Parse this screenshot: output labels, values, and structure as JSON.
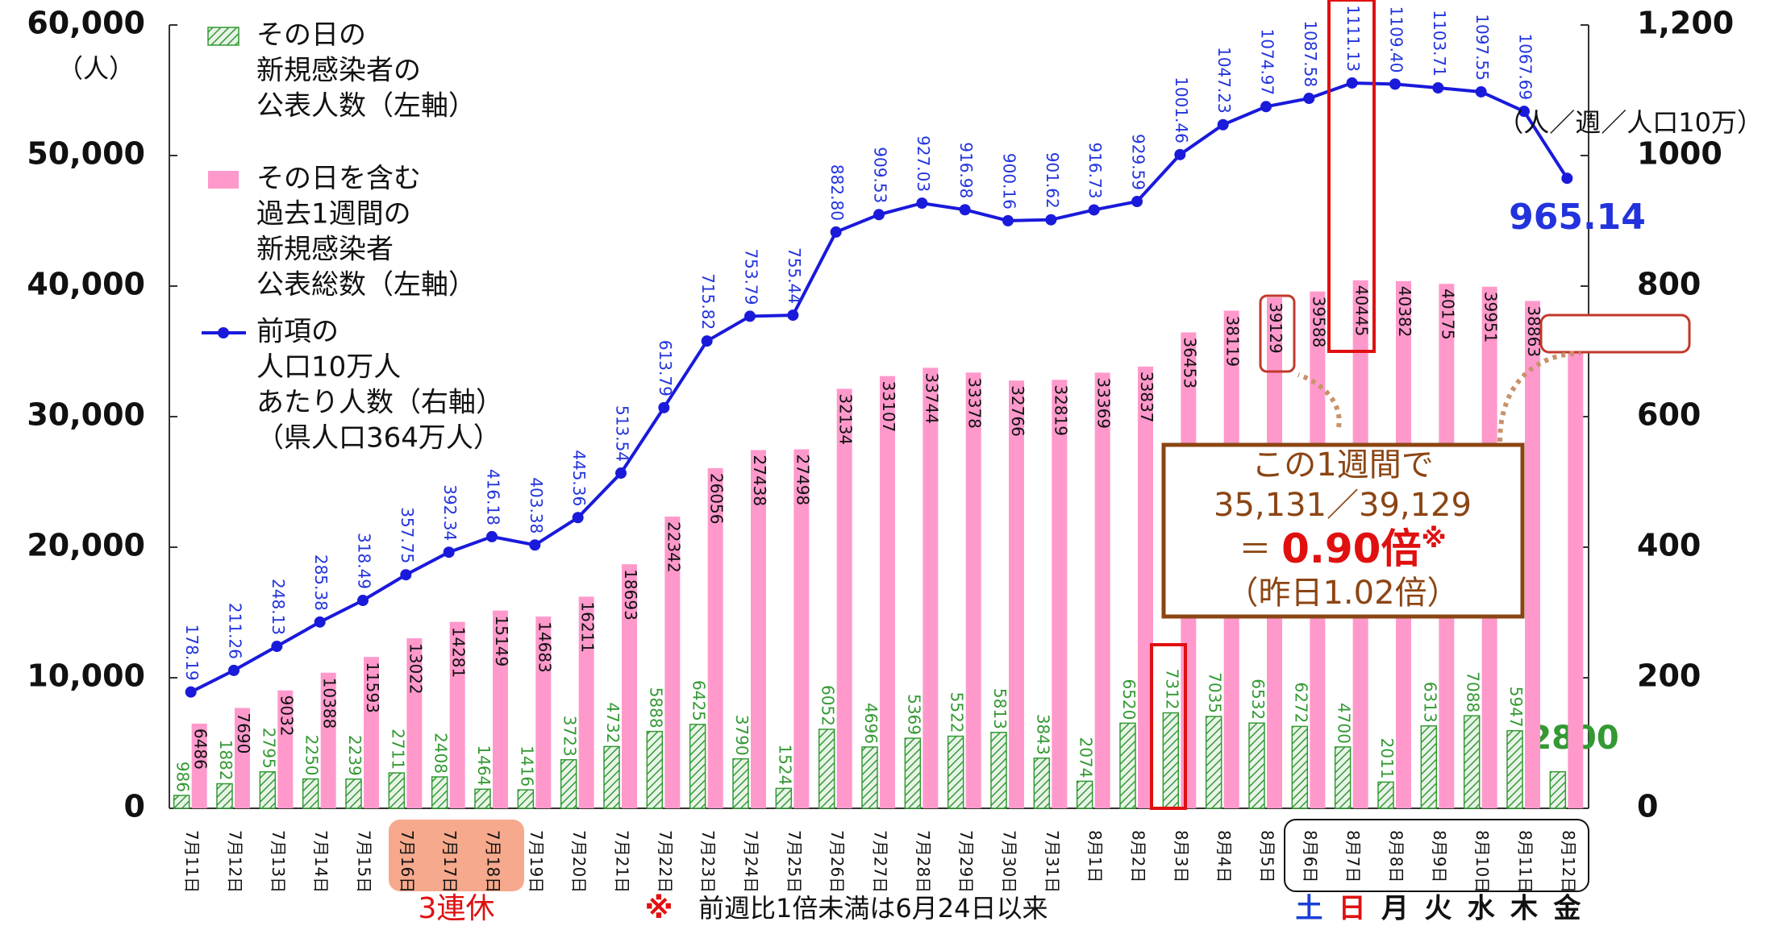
{
  "chart_data": {
    "type": "bar",
    "categories": [
      "7月11日",
      "7月12日",
      "7月13日",
      "7月14日",
      "7月15日",
      "7月16日",
      "7月17日",
      "7月18日",
      "7月19日",
      "7月20日",
      "7月21日",
      "7月22日",
      "7月23日",
      "7月24日",
      "7月25日",
      "7月26日",
      "7月27日",
      "7月28日",
      "7月29日",
      "7月30日",
      "7月31日",
      "8月1日",
      "8月2日",
      "8月3日",
      "8月4日",
      "8月5日",
      "8月6日",
      "8月7日",
      "8月8日",
      "8月9日",
      "8月10日",
      "8月11日",
      "8月12日"
    ],
    "series": [
      {
        "name": [
          "その日の",
          "新規感染者の",
          "公表人数（左軸）"
        ],
        "type": "bar",
        "color": "#339933",
        "values": [
          986,
          1882,
          2795,
          2250,
          2239,
          2711,
          2408,
          1464,
          1416,
          3723,
          4732,
          5888,
          6425,
          3790,
          1524,
          6052,
          4696,
          5369,
          5522,
          5813,
          3843,
          2074,
          6520,
          7312,
          7035,
          6532,
          6272,
          4700,
          2011,
          6313,
          7088,
          5947,
          2800
        ]
      },
      {
        "name": [
          "その日を含む",
          "過去1週間の",
          "新規感染者",
          "公表総数（左軸）"
        ],
        "type": "bar",
        "color": "#ff99cc",
        "values": [
          6486,
          7690,
          9032,
          10388,
          11593,
          13022,
          14281,
          15149,
          14683,
          16211,
          18693,
          22342,
          26056,
          27438,
          27498,
          32134,
          33107,
          33744,
          33378,
          32766,
          32819,
          33369,
          33837,
          36453,
          38119,
          39129,
          39588,
          40445,
          40382,
          40175,
          39951,
          38863,
          35131
        ]
      },
      {
        "name": [
          "前項の",
          "人口10万人",
          "あたり人数（右軸）",
          "（県人口364万人）"
        ],
        "type": "line",
        "axis": "y2",
        "color": "#1a1adb",
        "values": [
          178.19,
          211.26,
          248.13,
          285.38,
          318.49,
          357.75,
          392.34,
          416.18,
          403.38,
          445.36,
          513.54,
          613.79,
          715.82,
          753.79,
          755.44,
          882.8,
          909.53,
          927.03,
          916.98,
          900.16,
          901.62,
          916.73,
          929.59,
          1001.46,
          1047.23,
          1074.97,
          1087.58,
          1111.13,
          1109.4,
          1103.71,
          1097.55,
          1067.69,
          965.14
        ],
        "value_labels": [
          "178.19",
          "211.26",
          "248.13",
          "285.38",
          "318.49",
          "357.75",
          "392.34",
          "416.18",
          "403.38",
          "445.36",
          "513.54",
          "613.79",
          "715.82",
          "753.79",
          "755.44",
          "882.80",
          "909.53",
          "927.03",
          "916.98",
          "900.16",
          "901.62",
          "916.73",
          "929.59",
          "1001.46",
          "1047.23",
          "1074.97",
          "1087.58",
          "1111.13",
          "1109.40",
          "1103.71",
          "1097.55",
          "1067.69",
          "965.14"
        ]
      }
    ],
    "ylim": [
      0,
      60000
    ],
    "yticks": [
      0,
      {
        "value": 10000,
        "label": "10,000"
      },
      {
        "value": 20000,
        "label": "20,000"
      },
      {
        "value": 30000,
        "label": "30,000"
      },
      {
        "value": 40000,
        "label": "40,000"
      },
      {
        "value": 50000,
        "label": "50,000"
      },
      {
        "value": 60000,
        "label": "60,000"
      }
    ],
    "y_label": "（人）",
    "y2lim": [
      0,
      1200
    ],
    "y2ticks": [
      0,
      200,
      400,
      600,
      800,
      1000,
      {
        "value": 1200,
        "label": "1,200"
      }
    ],
    "y2_label": "（人／週／人口10万）",
    "annotation": {
      "line1": "この1週間で",
      "line2": "35,131／39,129",
      "eq": "＝ ",
      "ratio": "0.90倍",
      "mark": "※",
      "line4": "（昨日1.02倍）"
    },
    "holiday_note": "3連休",
    "footnote_mark": "※",
    "footnote": "前週比1倍未満は6月24日以来",
    "weekdays": [
      "土",
      "日",
      "月",
      "火",
      "水",
      "木",
      "金"
    ],
    "weekday_colors": [
      "#1a3fd6",
      "#e01010",
      "#111",
      "#111",
      "#111",
      "#111",
      "#111"
    ]
  }
}
